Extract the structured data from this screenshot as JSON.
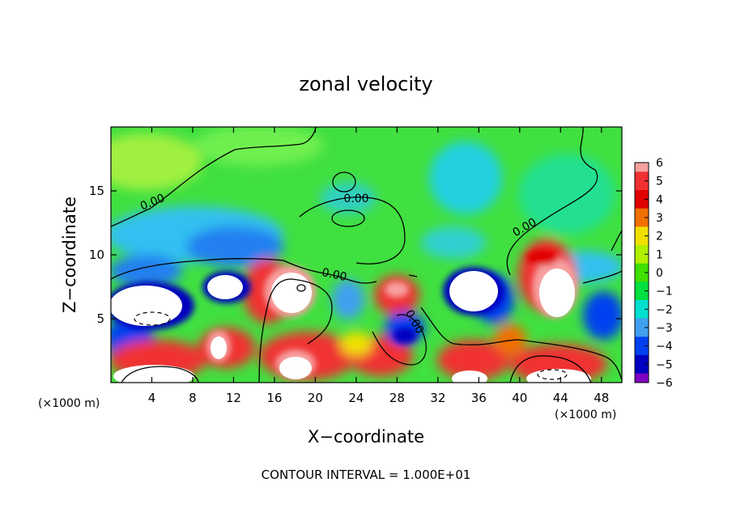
{
  "chart_data": {
    "type": "heatmap",
    "title": "zonal velocity",
    "xlabel": "X−coordinate",
    "ylabel": "Z−coordinate",
    "x_unit_label": "(×1000 m)",
    "y_unit_label": "(×1000 m)",
    "xlim": [
      0,
      50
    ],
    "ylim": [
      0,
      20
    ],
    "xticks": [
      4,
      8,
      12,
      16,
      20,
      24,
      28,
      32,
      36,
      40,
      44,
      48
    ],
    "yticks": [
      5,
      10,
      15
    ],
    "colorbar": {
      "ticks": [
        6,
        5,
        4,
        3,
        2,
        1,
        0,
        -1,
        -2,
        -3,
        -4,
        -5,
        -6
      ],
      "colors": [
        "#f7a0a0",
        "#f03030",
        "#e00000",
        "#f07000",
        "#f0e000",
        "#b0f000",
        "#40e000",
        "#00e040",
        "#00e0d0",
        "#40a0f0",
        "#0040f0",
        "#0000c0",
        "#8000c0"
      ]
    },
    "contour_label": "0.00",
    "footer": "CONTOUR INTERVAL = 1.000E+01",
    "grid": false
  }
}
